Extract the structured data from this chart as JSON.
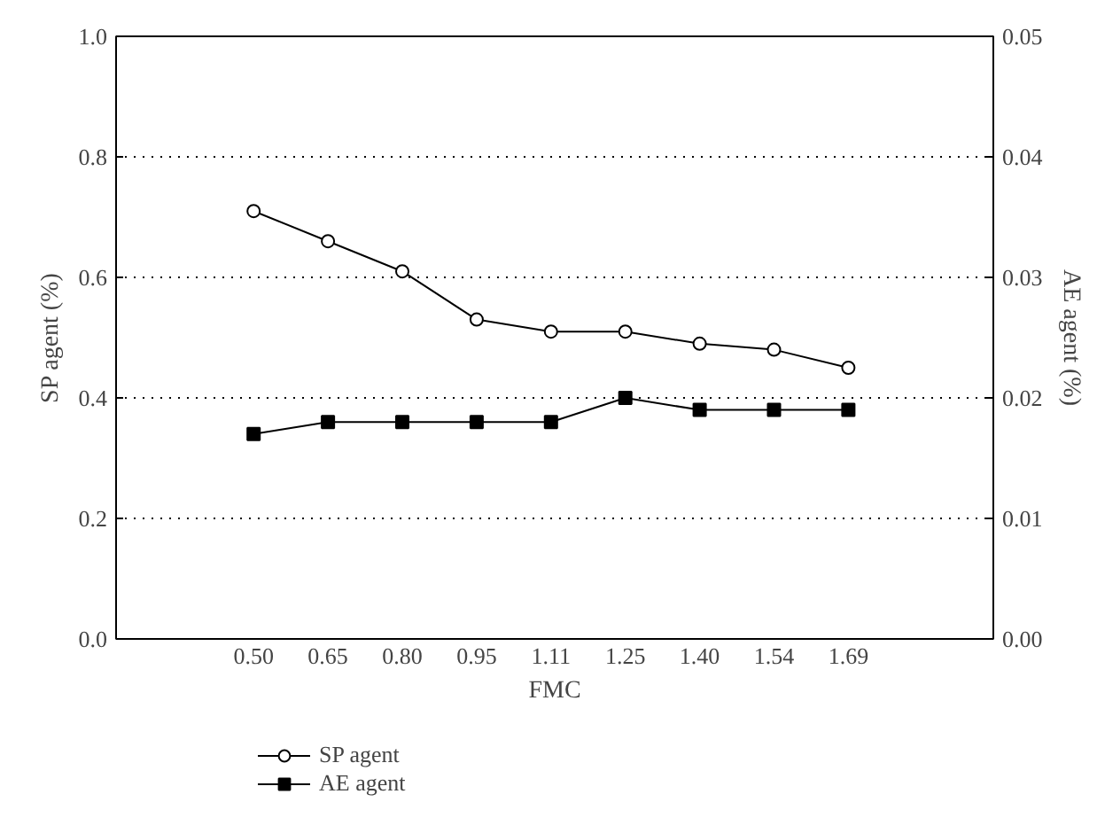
{
  "chart_data": {
    "type": "line",
    "xlabel": "FMC",
    "ylabel": "SP agent (%)",
    "y2label": "AE agent (%)",
    "categories": [
      "0.50",
      "0.65",
      "0.80",
      "0.95",
      "1.11",
      "1.25",
      "1.40",
      "1.54",
      "1.69"
    ],
    "series": [
      {
        "name": "SP agent",
        "color": "#000000",
        "marker": "circle",
        "values": [
          0.71,
          0.66,
          0.61,
          0.53,
          0.51,
          0.51,
          0.49,
          0.48,
          0.45
        ]
      },
      {
        "name": "AE agent",
        "color": "#000000",
        "marker": "square",
        "axis": "y2",
        "values": [
          0.017,
          0.018,
          0.018,
          0.018,
          0.018,
          0.02,
          0.019,
          0.019,
          0.019
        ]
      }
    ],
    "ylim": [
      0,
      1.0
    ],
    "yticks": [
      "0.0",
      0.2,
      0.4,
      0.6,
      0.8,
      "1.0"
    ],
    "y2lim": [
      0,
      0.05
    ],
    "y2ticks": [
      "0.00",
      0.01,
      0.02,
      0.03,
      0.04,
      0.05
    ],
    "grid": "y",
    "legend": "bottom",
    "line_style": "solid"
  }
}
